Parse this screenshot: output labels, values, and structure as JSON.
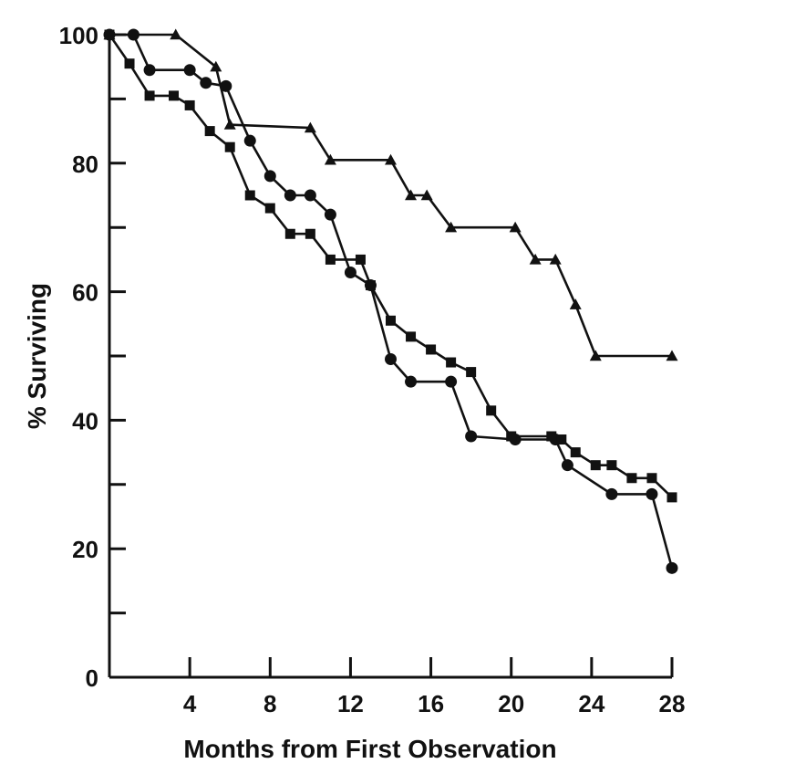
{
  "chart_data": {
    "type": "line",
    "title": "",
    "xlabel": "Months from First Observation",
    "ylabel": "% Surviving",
    "xlim": [
      0,
      28
    ],
    "ylim": [
      0,
      100
    ],
    "x_ticks": [
      4,
      8,
      12,
      16,
      20,
      24,
      28
    ],
    "y_ticks": [
      0,
      20,
      40,
      60,
      80,
      100
    ],
    "y_minor_ticks": [
      10,
      30,
      50,
      70,
      90
    ],
    "grid": false,
    "step": true,
    "colors": {
      "line": "#111111",
      "background": "#ffffff"
    },
    "series": [
      {
        "marker": "triangle",
        "points": [
          [
            0,
            100
          ],
          [
            3.3,
            100
          ],
          [
            5.3,
            95
          ],
          [
            6.0,
            86
          ],
          [
            10.0,
            85.5
          ],
          [
            11.0,
            80.5
          ],
          [
            14.0,
            80.5
          ],
          [
            15.0,
            75
          ],
          [
            15.8,
            75
          ],
          [
            17.0,
            70
          ],
          [
            20.2,
            70
          ],
          [
            21.2,
            65
          ],
          [
            22.2,
            65
          ],
          [
            23.2,
            58
          ],
          [
            24.2,
            50
          ],
          [
            28,
            50
          ]
        ]
      },
      {
        "marker": "circle",
        "points": [
          [
            0,
            100
          ],
          [
            1.2,
            100
          ],
          [
            2.0,
            94.5
          ],
          [
            4.0,
            94.5
          ],
          [
            4.8,
            92.5
          ],
          [
            5.8,
            92
          ],
          [
            7.0,
            83.5
          ],
          [
            8.0,
            78
          ],
          [
            9.0,
            75
          ],
          [
            10.0,
            75
          ],
          [
            11.0,
            72
          ],
          [
            12.0,
            63
          ],
          [
            13.0,
            61
          ],
          [
            14.0,
            49.5
          ],
          [
            15.0,
            46
          ],
          [
            17.0,
            46
          ],
          [
            18.0,
            37.5
          ],
          [
            20.2,
            37
          ],
          [
            22.2,
            37
          ],
          [
            22.8,
            33
          ],
          [
            25.0,
            28.5
          ],
          [
            27.0,
            28.5
          ],
          [
            28,
            17
          ]
        ]
      },
      {
        "marker": "square",
        "points": [
          [
            0,
            100
          ],
          [
            1.0,
            95.5
          ],
          [
            2.0,
            90.5
          ],
          [
            3.2,
            90.5
          ],
          [
            4.0,
            89
          ],
          [
            5.0,
            85
          ],
          [
            6.0,
            82.5
          ],
          [
            7.0,
            75
          ],
          [
            8.0,
            73
          ],
          [
            9.0,
            69
          ],
          [
            10.0,
            69
          ],
          [
            11.0,
            65
          ],
          [
            12.5,
            65
          ],
          [
            13.0,
            61
          ],
          [
            14.0,
            55.5
          ],
          [
            15.0,
            53
          ],
          [
            16.0,
            51
          ],
          [
            17.0,
            49
          ],
          [
            18.0,
            47.5
          ],
          [
            19.0,
            41.5
          ],
          [
            20.0,
            37.5
          ],
          [
            22.0,
            37.5
          ],
          [
            22.5,
            37
          ],
          [
            23.2,
            35
          ],
          [
            24.2,
            33
          ],
          [
            25.0,
            33
          ],
          [
            26.0,
            31
          ],
          [
            27.0,
            31
          ],
          [
            28,
            28
          ]
        ]
      }
    ]
  }
}
